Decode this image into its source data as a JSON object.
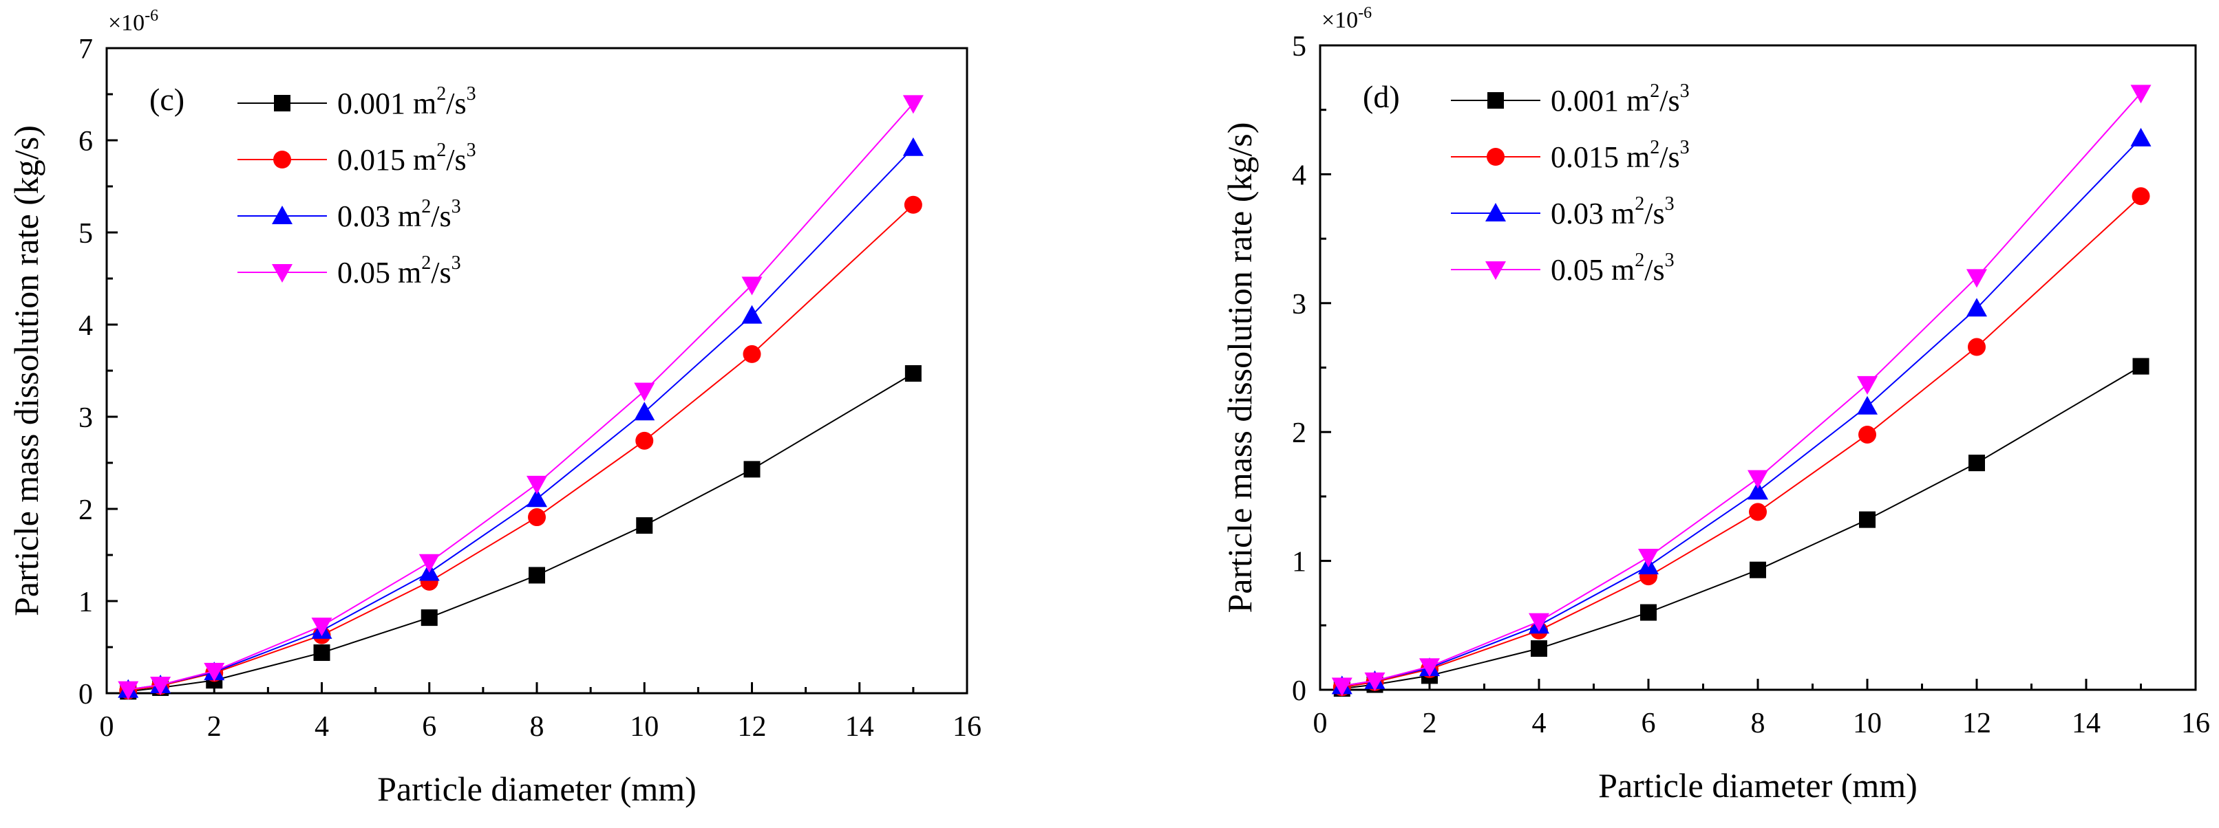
{
  "chart_data": [
    {
      "type": "line",
      "panel_label": "(c)",
      "xlabel": "Particle diameter (mm)",
      "ylabel": "Particle mass dissolution rate (kg/s)",
      "y_multiplier": "×10",
      "y_multiplier_exponent": "-6",
      "xlim": [
        0,
        16
      ],
      "ylim": [
        0,
        7
      ],
      "x_ticks": [
        0,
        2,
        4,
        6,
        8,
        10,
        12,
        14,
        16
      ],
      "y_ticks": [
        0,
        1,
        2,
        3,
        4,
        5,
        6,
        7
      ],
      "grid": false,
      "legend_position": "top-left",
      "x": [
        0.4,
        1,
        2,
        4,
        6,
        8,
        10,
        12,
        15
      ],
      "series": [
        {
          "name": "0.001 m",
          "unit_sup1": "2",
          "unit_mid": "/s",
          "unit_sup2": "3",
          "color": "#000000",
          "marker": "square",
          "values": [
            0.02,
            0.06,
            0.14,
            0.44,
            0.82,
            1.28,
            1.82,
            2.43,
            3.47
          ]
        },
        {
          "name": "0.015 m",
          "unit_sup1": "2",
          "unit_mid": "/s",
          "unit_sup2": "3",
          "color": "#ff0000",
          "marker": "circle",
          "values": [
            0.03,
            0.08,
            0.22,
            0.63,
            1.21,
            1.91,
            2.74,
            3.68,
            5.3
          ]
        },
        {
          "name": "0.03 m",
          "unit_sup1": "2",
          "unit_mid": "/s",
          "unit_sup2": "3",
          "color": "#0000ff",
          "marker": "triangle-up",
          "values": [
            0.04,
            0.09,
            0.23,
            0.68,
            1.31,
            2.11,
            3.05,
            4.1,
            5.92
          ]
        },
        {
          "name": "0.05 m",
          "unit_sup1": "2",
          "unit_mid": "/s",
          "unit_sup2": "3",
          "color": "#ff00ff",
          "marker": "triangle-down",
          "values": [
            0.04,
            0.09,
            0.24,
            0.73,
            1.42,
            2.27,
            3.28,
            4.43,
            6.4
          ]
        }
      ]
    },
    {
      "type": "line",
      "panel_label": "(d)",
      "xlabel": "Particle diameter (mm)",
      "ylabel": "Particle mass dissolution rate (kg/s)",
      "y_multiplier": "×10",
      "y_multiplier_exponent": "-6",
      "xlim": [
        0,
        16
      ],
      "ylim": [
        0,
        5
      ],
      "x_ticks": [
        0,
        2,
        4,
        6,
        8,
        10,
        12,
        14,
        16
      ],
      "y_ticks": [
        0,
        1,
        2,
        3,
        4,
        5
      ],
      "grid": false,
      "legend_position": "top-left",
      "x": [
        0.4,
        1,
        2,
        4,
        6,
        8,
        10,
        12,
        15
      ],
      "series": [
        {
          "name": "0.001 m",
          "unit_sup1": "2",
          "unit_mid": "/s",
          "unit_sup2": "3",
          "color": "#000000",
          "marker": "square",
          "values": [
            0.01,
            0.04,
            0.11,
            0.32,
            0.6,
            0.93,
            1.32,
            1.76,
            2.51
          ]
        },
        {
          "name": "0.015 m",
          "unit_sup1": "2",
          "unit_mid": "/s",
          "unit_sup2": "3",
          "color": "#ff0000",
          "marker": "circle",
          "values": [
            0.02,
            0.06,
            0.16,
            0.46,
            0.88,
            1.38,
            1.98,
            2.66,
            3.83
          ]
        },
        {
          "name": "0.03 m",
          "unit_sup1": "2",
          "unit_mid": "/s",
          "unit_sup2": "3",
          "color": "#0000ff",
          "marker": "triangle-up",
          "values": [
            0.03,
            0.07,
            0.17,
            0.5,
            0.96,
            1.54,
            2.2,
            2.96,
            4.28
          ]
        },
        {
          "name": "0.05 m",
          "unit_sup1": "2",
          "unit_mid": "/s",
          "unit_sup2": "3",
          "color": "#ff00ff",
          "marker": "triangle-down",
          "values": [
            0.03,
            0.07,
            0.18,
            0.53,
            1.03,
            1.64,
            2.37,
            3.2,
            4.63
          ]
        }
      ]
    }
  ]
}
